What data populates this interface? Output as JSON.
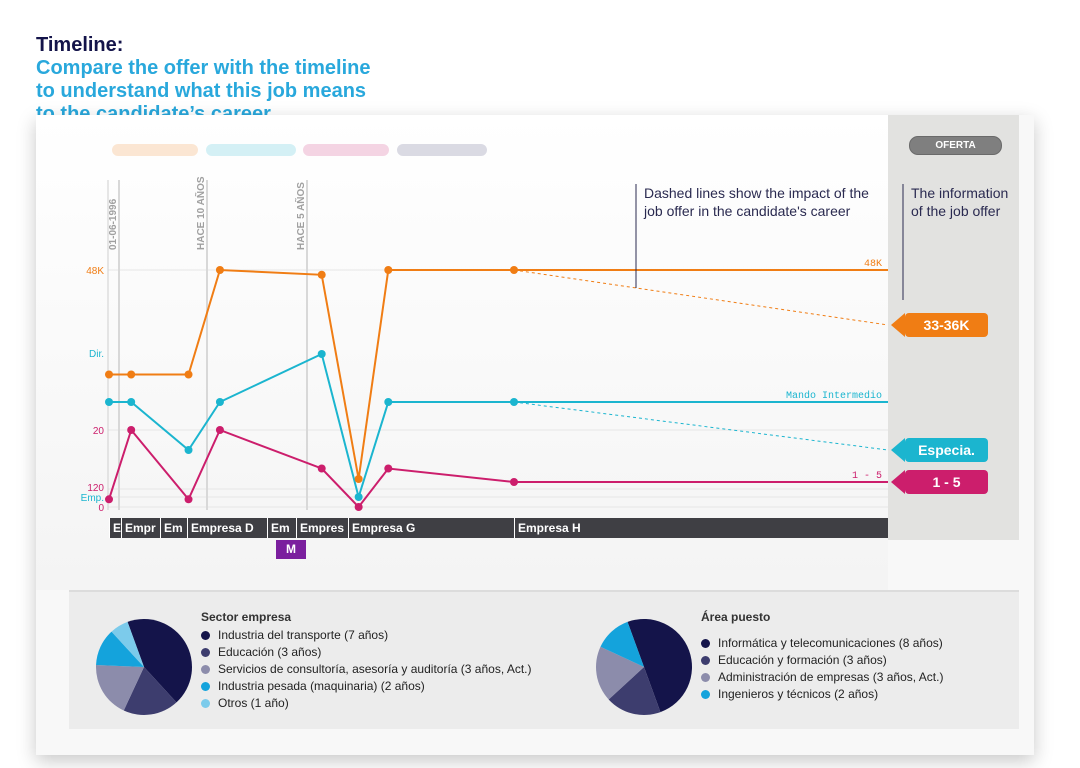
{
  "heading": {
    "title": "Timeline:",
    "subtitle_lines": [
      "Compare the offer with the timeline",
      "to understand what this job means",
      "to the candidate’s career."
    ]
  },
  "offer_button": "OFERTA",
  "annotations": {
    "dashed_note_lines": [
      "Dashed lines show the impact of the",
      "job offer in the candidate's career"
    ],
    "offer_note_lines": [
      "The information",
      "of the job offer"
    ]
  },
  "colors": {
    "salary": "#f07d14",
    "level": "#1bb5cf",
    "team": "#cc1e6c",
    "company_bar": "#3f3f44",
    "pie_dark": "#14144a"
  },
  "chart_data": {
    "type": "line",
    "vertical_markers": [
      "01-06-1996",
      "HACE 10 AÑOS",
      "HACE 5 AÑOS"
    ],
    "series": [
      {
        "key": "salary",
        "axis_labels": [
          "48K"
        ],
        "end_label": "48K",
        "offer_label": "33-36K",
        "values": [
          22,
          22,
          22,
          44,
          43,
          0,
          44,
          44
        ],
        "dates": [
          "1996-06-01",
          "1997-06-01",
          "2000-01-01",
          "2001-06-01",
          "2006-01-01",
          "2007-09-01",
          "2009-01-01",
          "2014-09-01"
        ]
      },
      {
        "key": "level",
        "axis_labels": [
          "Dir.",
          "Emp."
        ],
        "end_label": "Mando Intermedio",
        "offer_label": "Especia.",
        "values": [
          3,
          3,
          2,
          3,
          4,
          1,
          3,
          3
        ],
        "dates": [
          "1996-06-01",
          "1997-06-01",
          "2000-01-01",
          "2001-06-01",
          "2006-01-01",
          "2007-09-01",
          "2009-01-01",
          "2014-09-01"
        ]
      },
      {
        "key": "team",
        "axis_labels": [
          "20",
          "120",
          "0"
        ],
        "end_label": "1 - 5",
        "offer_label": "1 - 5",
        "values": [
          2,
          20,
          2,
          20,
          10,
          0,
          10,
          3
        ],
        "dates": [
          "1996-06-01",
          "1997-06-01",
          "2000-01-01",
          "2001-06-01",
          "2006-01-01",
          "2007-09-01",
          "2009-01-01",
          "2014-09-01"
        ]
      }
    ]
  },
  "companies": [
    "E",
    "Empr",
    "Em",
    "Empresa D",
    "Em",
    "Empres",
    "Empresa G",
    "Empresa H"
  ],
  "current_company_badge": "M",
  "pies": [
    {
      "title": "Sector empresa",
      "items": [
        {
          "label": "Industria del transporte (7 años)",
          "value": 7,
          "color": "#14144a"
        },
        {
          "label": "Educación (3 años)",
          "value": 3,
          "color": "#3d3d6e"
        },
        {
          "label": "Servicios de consultoría, asesoría y auditoría (3 años, Act.)",
          "value": 3,
          "color": "#8c8cab"
        },
        {
          "label": "Industria pesada (maquinaria) (2 años)",
          "value": 2,
          "color": "#14a3dc"
        },
        {
          "label": "Otros (1 año)",
          "value": 1,
          "color": "#7ccbeb"
        }
      ]
    },
    {
      "title": "Área puesto",
      "items": [
        {
          "label": "Informática y telecomunicaciones (8 años)",
          "value": 8,
          "color": "#14144a"
        },
        {
          "label": "Educación y formación (3 años)",
          "value": 3,
          "color": "#3d3d6e"
        },
        {
          "label": "Administración de empresas (3 años, Act.)",
          "value": 3,
          "color": "#8c8cab"
        },
        {
          "label": "Ingenieros y técnicos (2 años)",
          "value": 2,
          "color": "#14a3dc"
        }
      ]
    }
  ]
}
